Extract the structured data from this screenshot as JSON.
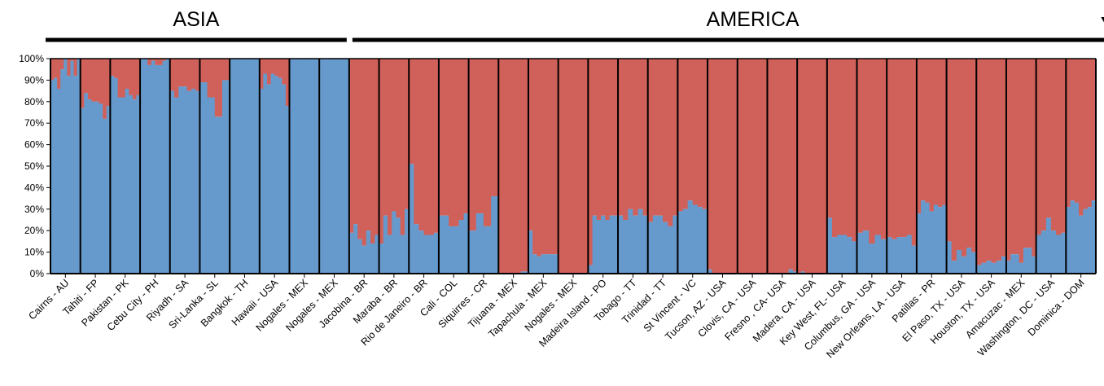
{
  "chart_data": {
    "type": "bar",
    "stacked": true,
    "normalized": true,
    "regions": [
      {
        "label": "ASIA",
        "first": 0,
        "last": 9
      },
      {
        "label": "AMERICA",
        "first": 10,
        "last": 36
      }
    ],
    "highlight_marker": {
      "shape": "triangle-down",
      "group_index": 35
    },
    "yticks": [
      "0%",
      "10%",
      "20%",
      "30%",
      "40%",
      "50%",
      "60%",
      "70%",
      "80%",
      "90%",
      "100%"
    ],
    "ylim": [
      0,
      100
    ],
    "colors": {
      "blue": "#6699cc",
      "red": "#d0605a",
      "separator": "#000000"
    },
    "groups": [
      {
        "label": "Cairns - AU",
        "blue": [
          90,
          91,
          86,
          95,
          100,
          92,
          99,
          92,
          100
        ]
      },
      {
        "label": "Tahiti - FP",
        "blue": [
          77,
          84,
          81,
          80,
          80,
          79,
          72,
          78
        ]
      },
      {
        "label": "Pakistan - PK",
        "blue": [
          92,
          91,
          82,
          82,
          86,
          83,
          81,
          83
        ]
      },
      {
        "label": "Cebu City - PH",
        "blue": [
          100,
          100,
          97,
          99,
          97,
          97,
          99,
          100
        ]
      },
      {
        "label": "Riyadh - SA",
        "blue": [
          85,
          82,
          87,
          87,
          85,
          86,
          85
        ]
      },
      {
        "label": "Sri-Lanka - SL",
        "blue": [
          89,
          82,
          73,
          90
        ]
      },
      {
        "label": "Bangkok - TH",
        "blue": [
          100,
          100,
          100,
          100,
          100,
          100,
          100
        ]
      },
      {
        "label": "Hawaii - USA",
        "blue": [
          86,
          93,
          88,
          93,
          92,
          91,
          88,
          78
        ]
      },
      {
        "label": "Nogales - MEX",
        "blue": [
          100,
          100,
          100,
          100,
          100,
          100,
          100
        ]
      },
      {
        "label": "Nogales - MEX",
        "blue": [
          100,
          100,
          100,
          100,
          100,
          100,
          100,
          100,
          100
        ]
      },
      {
        "label": "Jacobina - BR",
        "blue": [
          19,
          23,
          16,
          13,
          20,
          14,
          18
        ]
      },
      {
        "label": "Maraba - BR",
        "blue": [
          14,
          27,
          18,
          29,
          26,
          18,
          30
        ]
      },
      {
        "label": "Rio de Janeiro - BR",
        "blue": [
          51,
          23,
          20,
          18,
          18,
          19
        ]
      },
      {
        "label": "Cali - COL",
        "blue": [
          27,
          27,
          22,
          22,
          25,
          28
        ]
      },
      {
        "label": "Siquirres - CR",
        "blue": [
          20,
          28,
          22,
          36
        ]
      },
      {
        "label": "Tijuana - MEX",
        "blue": [
          0,
          0,
          0,
          0,
          0,
          0,
          1,
          1
        ]
      },
      {
        "label": "Tapachula - MEX",
        "blue": [
          20,
          9,
          8,
          9,
          9,
          9,
          9
        ]
      },
      {
        "label": "Nogales - MEX",
        "blue": [
          0,
          0,
          0,
          0,
          0,
          0,
          0,
          0
        ]
      },
      {
        "label": "Madeira Island - PO",
        "blue": [
          4,
          27,
          25,
          27,
          25,
          27,
          27
        ]
      },
      {
        "label": "Tobago - TT",
        "blue": [
          27,
          25,
          30,
          27,
          30,
          27
        ]
      },
      {
        "label": "Trinidad - TT",
        "blue": [
          24,
          27,
          27,
          24,
          22,
          27
        ]
      },
      {
        "label": "St Vincent - VC",
        "blue": [
          29,
          30,
          34,
          32,
          31,
          30
        ]
      },
      {
        "label": "Tucson, AZ - USA",
        "blue": [
          2,
          0,
          0,
          0,
          0,
          0,
          0
        ]
      },
      {
        "label": "Clovis, CA - USA",
        "blue": [
          0,
          0,
          0,
          0,
          0,
          0,
          0
        ]
      },
      {
        "label": "Fresno , CA- USA",
        "blue": [
          0,
          0,
          0,
          0,
          0,
          2,
          1
        ]
      },
      {
        "label": "Madera, CA - USA",
        "blue": [
          0,
          1,
          0,
          0,
          0,
          0,
          0,
          0
        ]
      },
      {
        "label": "Key West, FL- USA",
        "blue": [
          26,
          17,
          18,
          18,
          17,
          15
        ]
      },
      {
        "label": "Columbus, GA - USA",
        "blue": [
          19,
          20,
          14,
          18,
          16
        ]
      },
      {
        "label": "New Orleans, LA - USA",
        "blue": [
          17,
          16,
          17,
          17,
          18,
          13
        ]
      },
      {
        "label": "Patillas - PR",
        "blue": [
          28,
          34,
          33,
          29,
          32,
          31,
          32
        ]
      },
      {
        "label": "El Paso, TX - USA",
        "blue": [
          15,
          6,
          11,
          8,
          12,
          10
        ]
      },
      {
        "label": "Houston, TX - USA",
        "blue": [
          4,
          5,
          6,
          5,
          6,
          8
        ]
      },
      {
        "label": "Amacuzac - MEX",
        "blue": [
          6,
          9,
          9,
          5,
          12,
          12,
          8
        ]
      },
      {
        "label": "Washington, DC - USA",
        "blue": [
          18,
          20,
          26,
          20,
          18,
          19
        ]
      },
      {
        "label": "Dominica - DOM",
        "blue": [
          31,
          34,
          33,
          27,
          30,
          31,
          34
        ]
      }
    ]
  }
}
